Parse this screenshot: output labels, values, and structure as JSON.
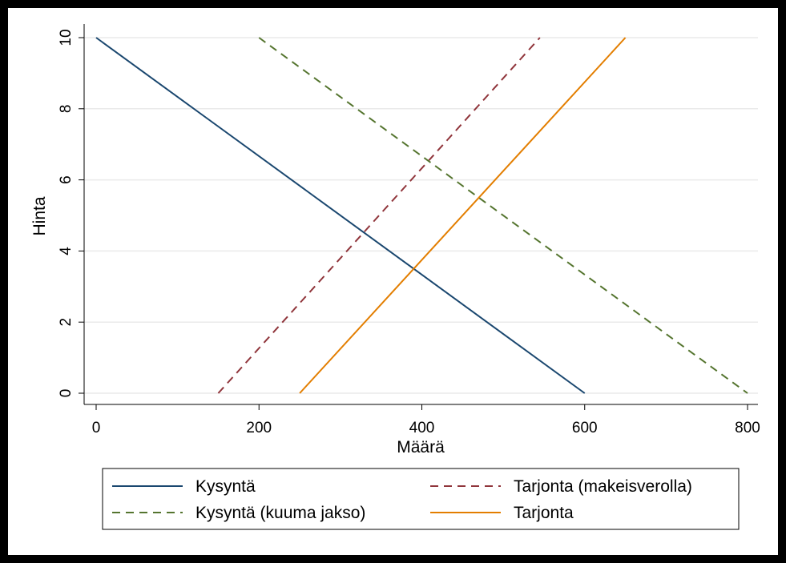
{
  "chart_data": {
    "type": "line",
    "title": "",
    "xlabel": "Määrä",
    "ylabel": "Hinta",
    "xlim": [
      0,
      800
    ],
    "ylim": [
      0,
      10
    ],
    "x_ticks": [
      "0",
      "200",
      "400",
      "600",
      "800"
    ],
    "y_ticks": [
      "0",
      "2",
      "4",
      "6",
      "8",
      "10"
    ],
    "grid": "horizontal",
    "legend_position": "bottom",
    "series": [
      {
        "name": "Kysyntä",
        "color": "#1a476f",
        "dash": "solid",
        "points": [
          [
            0,
            10
          ],
          [
            600,
            0
          ]
        ]
      },
      {
        "name": "Tarjonta (makeisverolla)",
        "color": "#90353b",
        "dash": "dashed",
        "points": [
          [
            150,
            0
          ],
          [
            545,
            10
          ]
        ]
      },
      {
        "name": "Kysyntä (kuuma jakso)",
        "color": "#55752f",
        "dash": "dashed",
        "points": [
          [
            200,
            10
          ],
          [
            800,
            0
          ]
        ]
      },
      {
        "name": "Tarjonta",
        "color": "#e37e00",
        "dash": "solid",
        "points": [
          [
            250,
            0
          ],
          [
            650,
            10
          ]
        ]
      }
    ]
  }
}
